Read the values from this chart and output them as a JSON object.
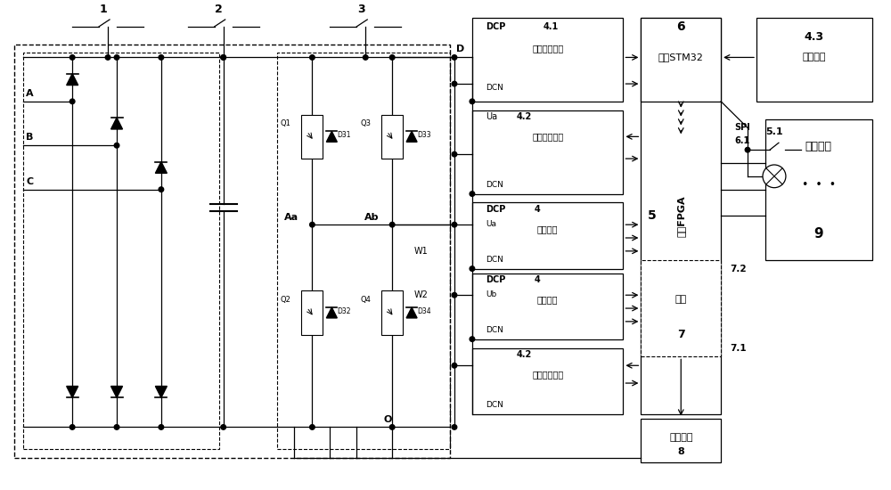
{
  "bg_color": "#ffffff",
  "labels": {
    "switch1": "1",
    "switch2": "2",
    "switch3": "3",
    "nodeA": "A",
    "nodeB": "B",
    "nodeC": "C",
    "nodeAa": "Aa",
    "nodeAb": "Ab",
    "nodeD": "D",
    "nodeO": "O",
    "nodeW1": "W1",
    "nodeW2": "W2",
    "box41_sub": "母线过压检测",
    "box41_dcn": "DCN",
    "box42a_sub": "桥臂状态检测",
    "box42a_dcn": "DCN",
    "box4a_sub": "脉宽测量",
    "box4a_dcn": "DCN",
    "box4b_sub": "脉宽测量",
    "box4b_dcn": "DCN",
    "box42b_sub": "桥臂状态检测",
    "box42b_dcn": "DCN",
    "box5_title": "单元FPGA",
    "box5_num": "5",
    "box6_title": "单元STM32",
    "box6_num": "6",
    "box43_title": "4.3",
    "box43_sub": "温度测量",
    "box8_title": "驱动电路",
    "box8_num": "8",
    "box9_title": "主控系统",
    "box9_num": "9",
    "label51": "5.1",
    "label71": "7.1",
    "label72": "7.2",
    "label7": "7",
    "label_fiber": "光纤"
  }
}
